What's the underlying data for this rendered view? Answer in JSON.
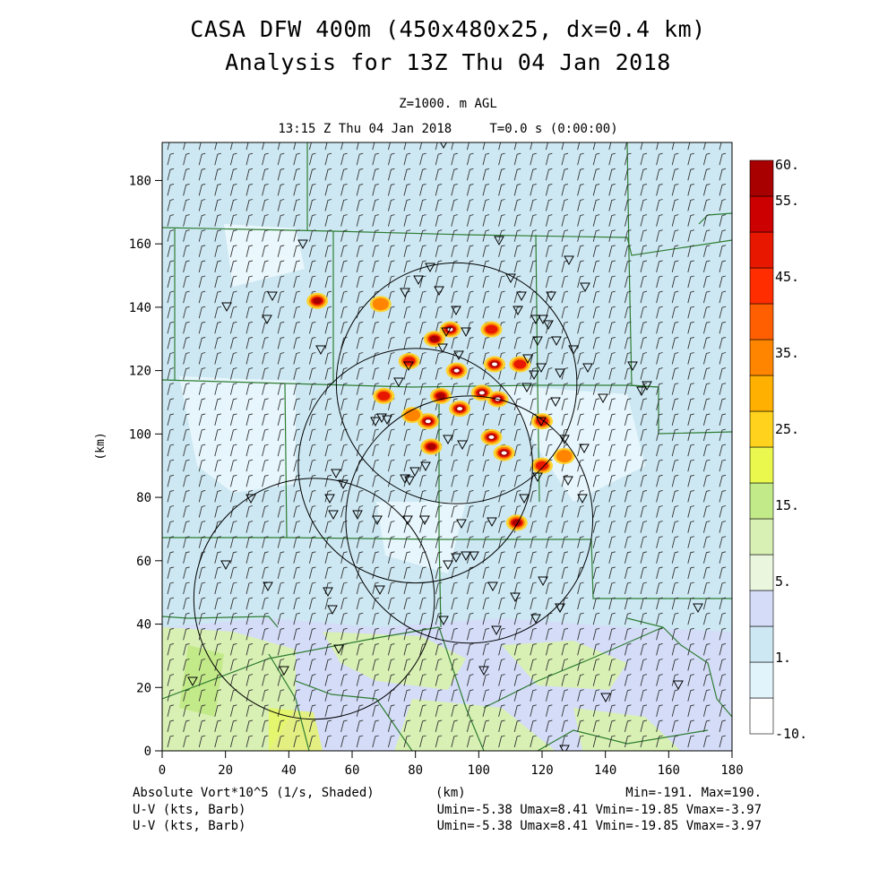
{
  "title": {
    "line1": "CASA DFW 400m (450x480x25, dx=0.4 km)",
    "line2": "Analysis for 13Z Thu 04 Jan 2018"
  },
  "level": "Z=1000. m AGL",
  "time_info": "13:15 Z Thu 04 Jan 2018     T=0.0 s (0:00:00)",
  "axes": {
    "x_label": "(km)",
    "y_label": "(km)",
    "x_range": [
      0,
      180
    ],
    "y_range": [
      0,
      192
    ],
    "x_ticks": [
      "0",
      "20",
      "40",
      "60",
      "80",
      "100",
      "120",
      "140",
      "160",
      "180"
    ],
    "y_ticks": [
      "0",
      "20",
      "40",
      "60",
      "80",
      "100",
      "120",
      "140",
      "160",
      "180"
    ]
  },
  "colorbar": {
    "labels": [
      "60.",
      "55.",
      "45.",
      "35.",
      "25.",
      "15.",
      "5.",
      "1.",
      "-10."
    ],
    "colors": [
      "#ffffff",
      "#e2f4fb",
      "#cde8f3",
      "#d4dcf8",
      "#eaf7de",
      "#d8f0b4",
      "#c3ea88",
      "#eaf84e",
      "#ffd21e",
      "#ffb000",
      "#ff8500",
      "#ff5f00",
      "#ff2d00",
      "#e81800",
      "#cc0000",
      "#a80000"
    ]
  },
  "footer": {
    "left1": "Absolute Vort*10^5 (1/s, Shaded)",
    "center1": "(km)",
    "right1": "Min=-191. Max=190.",
    "left2": "U-V (kts, Barb)",
    "right2": "Umin=-5.38 Umax=8.41 Vmin=-19.85 Vmax=-3.97",
    "left3": "U-V (kts, Barb)",
    "right3": "Umin=-5.38 Umax=8.41 Vmin=-19.85 Vmax=-3.97"
  },
  "colors": {
    "background_field": "#cde8f3",
    "county_lines": "#2e7d32",
    "barbs": "#333333",
    "radar_rings": "#000000"
  },
  "chart_data": {
    "type": "heatmap",
    "field": "Absolute Vort*10^5 (1/s, Shaded)",
    "range_rings": [
      {
        "cx_km": 93,
        "cy_km": 116,
        "r_km": 38
      },
      {
        "cx_km": 80,
        "cy_km": 90,
        "r_km": 37
      },
      {
        "cx_km": 97,
        "cy_km": 73,
        "r_km": 39
      },
      {
        "cx_km": 48,
        "cy_km": 48,
        "r_km": 38
      }
    ],
    "vorticity_maxima": [
      {
        "x_km": 49,
        "y_km": 142,
        "value": 45
      },
      {
        "x_km": 69,
        "y_km": 141,
        "value": 25
      },
      {
        "x_km": 91,
        "y_km": 133,
        "value": 55
      },
      {
        "x_km": 86,
        "y_km": 130,
        "value": 45
      },
      {
        "x_km": 104,
        "y_km": 133,
        "value": 35
      },
      {
        "x_km": 78,
        "y_km": 123,
        "value": 35
      },
      {
        "x_km": 93,
        "y_km": 120,
        "value": 55
      },
      {
        "x_km": 105,
        "y_km": 122,
        "value": 55
      },
      {
        "x_km": 113,
        "y_km": 122,
        "value": 35
      },
      {
        "x_km": 101,
        "y_km": 113,
        "value": 60
      },
      {
        "x_km": 106,
        "y_km": 111,
        "value": 55
      },
      {
        "x_km": 88,
        "y_km": 112,
        "value": 45
      },
      {
        "x_km": 94,
        "y_km": 108,
        "value": 55
      },
      {
        "x_km": 84,
        "y_km": 104,
        "value": 55
      },
      {
        "x_km": 70,
        "y_km": 112,
        "value": 35
      },
      {
        "x_km": 79,
        "y_km": 106,
        "value": 25
      },
      {
        "x_km": 85,
        "y_km": 96,
        "value": 45
      },
      {
        "x_km": 104,
        "y_km": 99,
        "value": 55
      },
      {
        "x_km": 108,
        "y_km": 94,
        "value": 60
      },
      {
        "x_km": 120,
        "y_km": 104,
        "value": 35
      },
      {
        "x_km": 120,
        "y_km": 90,
        "value": 35
      },
      {
        "x_km": 127,
        "y_km": 93,
        "value": 25
      },
      {
        "x_km": 112,
        "y_km": 72,
        "value": 45
      }
    ]
  }
}
